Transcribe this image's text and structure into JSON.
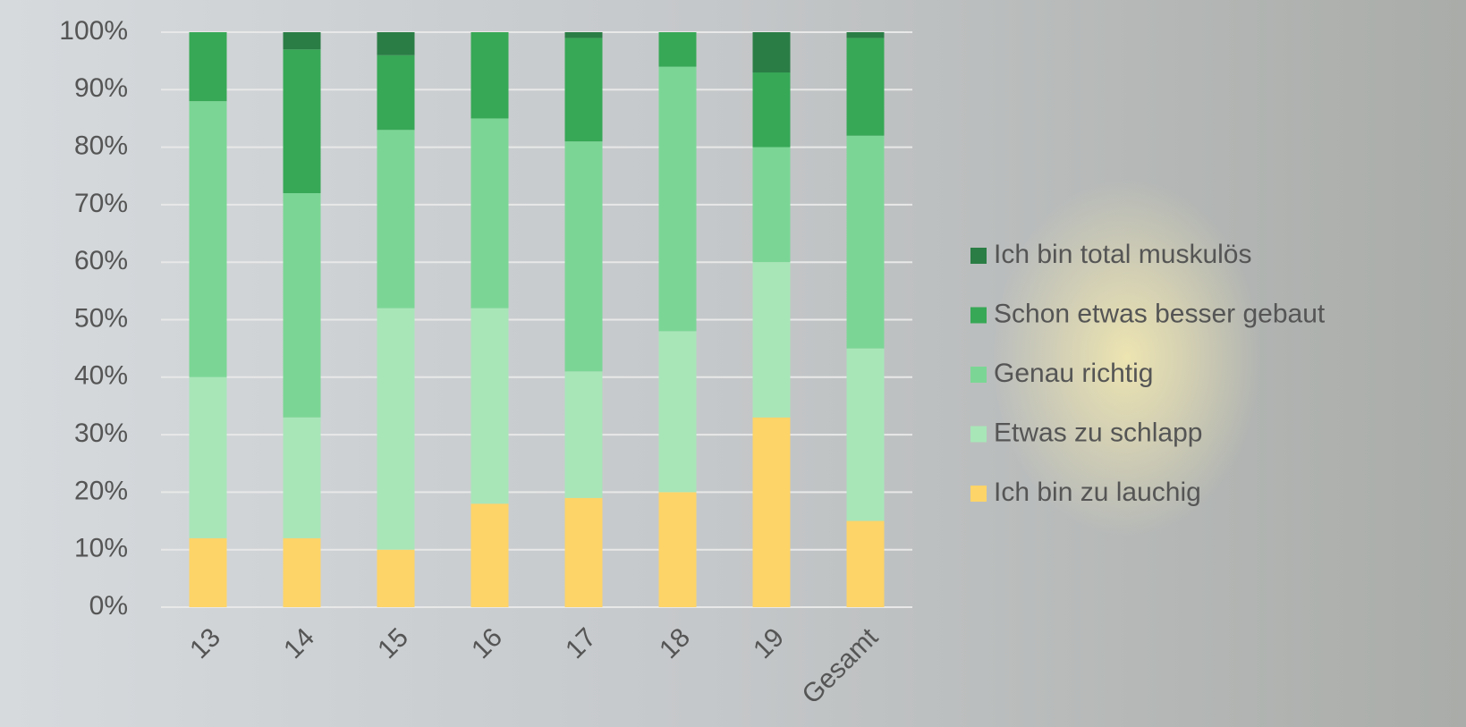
{
  "chart_data": {
    "type": "stacked_bar",
    "categories": [
      "13",
      "14",
      "15",
      "16",
      "17",
      "18",
      "19",
      "Gesamt"
    ],
    "series": [
      {
        "name": "Ich bin zu lauchig",
        "color": "#fdd468",
        "values": [
          12,
          12,
          10,
          18,
          19,
          20,
          33,
          15
        ]
      },
      {
        "name": "Etwas zu schlapp",
        "color": "#a8e6b8",
        "values": [
          28,
          21,
          42,
          34,
          22,
          28,
          27,
          30
        ]
      },
      {
        "name": "Genau richtig",
        "color": "#7bd695",
        "values": [
          48,
          39,
          31,
          33,
          40,
          46,
          20,
          37
        ]
      },
      {
        "name": "Schon etwas besser gebaut",
        "color": "#37a856",
        "values": [
          12,
          25,
          13,
          15,
          18,
          6,
          13,
          17
        ]
      },
      {
        "name": "Ich bin total muskulös",
        "color": "#2a7d45",
        "values": [
          0,
          3,
          4,
          0,
          1,
          0,
          7,
          1
        ]
      }
    ],
    "ylim": [
      0,
      100
    ],
    "yticks": [
      {
        "value": 0,
        "label": "0%"
      },
      {
        "value": 10,
        "label": "10%"
      },
      {
        "value": 20,
        "label": "20%"
      },
      {
        "value": 30,
        "label": "30%"
      },
      {
        "value": 40,
        "label": "40%"
      },
      {
        "value": 50,
        "label": "50%"
      },
      {
        "value": 60,
        "label": "60%"
      },
      {
        "value": 70,
        "label": "70%"
      },
      {
        "value": 80,
        "label": "80%"
      },
      {
        "value": 90,
        "label": "90%"
      },
      {
        "value": 100,
        "label": "100%"
      }
    ],
    "grid": true,
    "legend": "right"
  }
}
